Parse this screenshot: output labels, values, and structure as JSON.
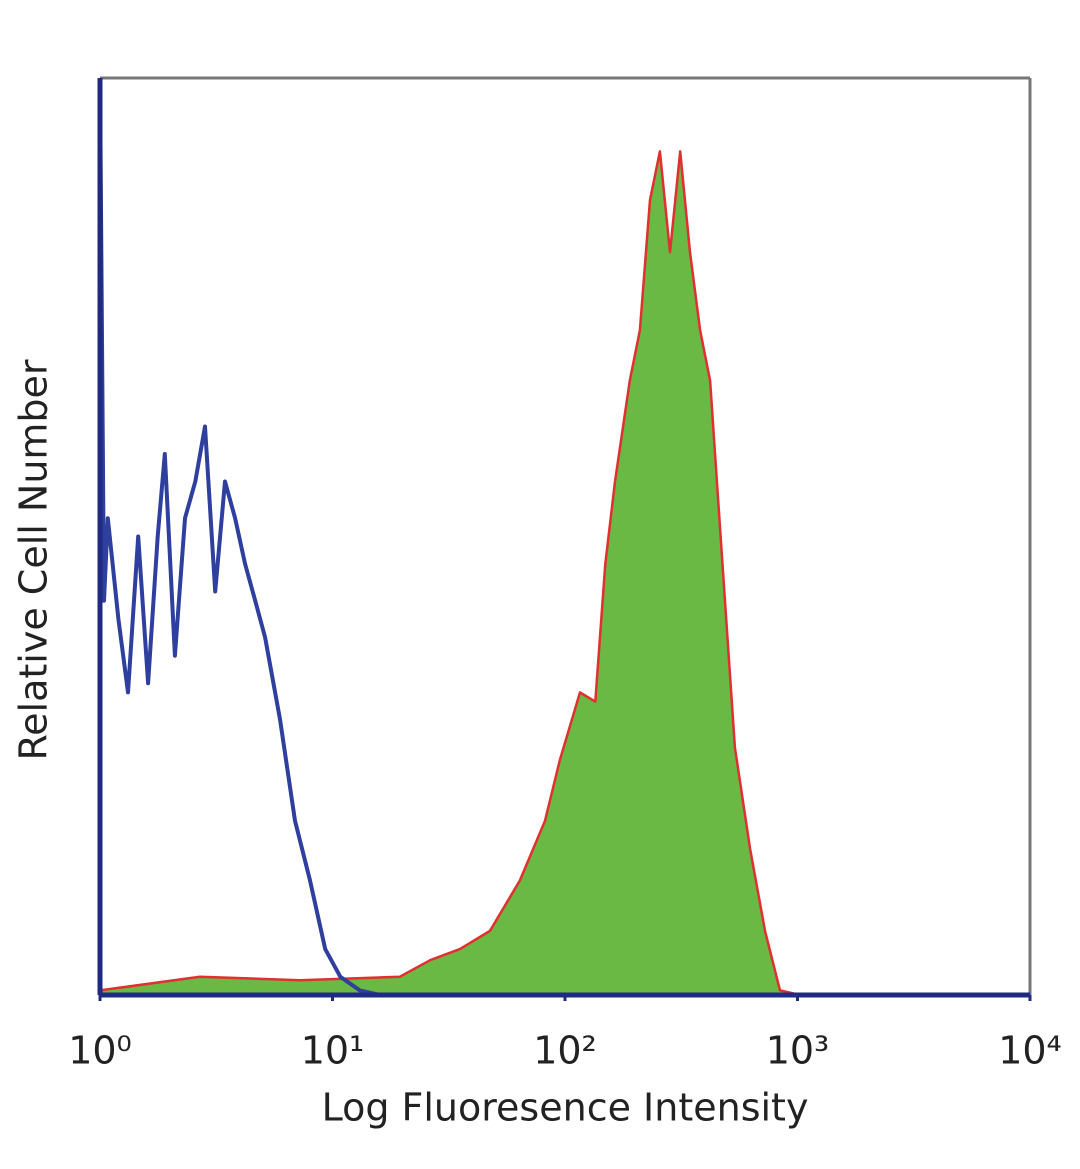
{
  "chart_data": {
    "type": "histogram-overlay",
    "xlabel": "Log Fluoresence Intensity",
    "ylabel": "Relative Cell Number",
    "xscale": "log",
    "xlim": [
      1,
      10000
    ],
    "ylim": [
      0,
      100
    ],
    "xticks": [
      {
        "value": 1,
        "label": "10⁰"
      },
      {
        "value": 10,
        "label": "10¹"
      },
      {
        "value": 100,
        "label": "10²"
      },
      {
        "value": 1000,
        "label": "10³"
      },
      {
        "value": 10000,
        "label": "10⁴"
      }
    ],
    "series": [
      {
        "color": "#2e3f9e",
        "filled": false,
        "x": [
          1,
          1.04,
          1.08,
          1.2,
          1.32,
          1.46,
          1.61,
          1.77,
          1.9,
          2.1,
          2.32,
          2.57,
          2.83,
          3.13,
          3.45,
          3.81,
          4.21,
          4.65,
          5.13,
          5.95,
          6.9,
          8.0,
          9.3,
          10.8,
          13.1,
          16.0,
          10000
        ],
        "values": [
          100,
          43,
          52,
          41,
          33,
          50,
          34,
          50,
          59,
          37,
          52,
          56,
          62,
          44,
          56,
          52,
          47,
          43,
          39,
          30,
          19,
          12.5,
          5,
          2,
          0.5,
          0,
          0
        ]
      },
      {
        "color": "#6ab944",
        "edge_color": "#e03030",
        "filled": true,
        "x": [
          1,
          2.69,
          7.25,
          19.5,
          26.3,
          35.3,
          47.6,
          64,
          82,
          95,
          116,
          135,
          149,
          164,
          190,
          210,
          232,
          256,
          283,
          313,
          345,
          381,
          421,
          464,
          538,
          625,
          725,
          841,
          1025
        ],
        "values": [
          0.5,
          2,
          1.6,
          2,
          3.8,
          5,
          7,
          12.5,
          19,
          25.6,
          33,
          32,
          47,
          56,
          67,
          72.5,
          86.7,
          92,
          81,
          92,
          81,
          72.5,
          67,
          51,
          27,
          16,
          7,
          0.5,
          0
        ]
      }
    ]
  }
}
